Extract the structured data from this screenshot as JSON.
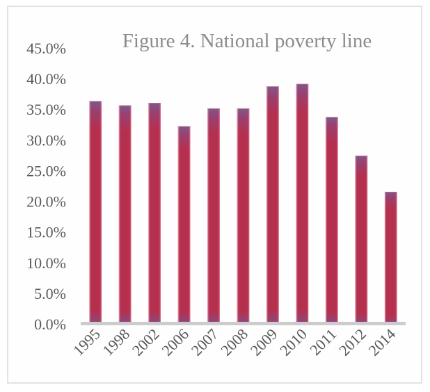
{
  "chart_data": {
    "type": "bar",
    "title": "Figure 4. National poverty line",
    "xlabel": "",
    "ylabel": "",
    "categories": [
      "1995",
      "1998",
      "2002",
      "2006",
      "2007",
      "2008",
      "2009",
      "2010",
      "2011",
      "2012",
      "2014"
    ],
    "series": [
      {
        "name": "National poverty line",
        "values": [
          36.3,
          35.6,
          36.0,
          32.2,
          35.1,
          35.1,
          38.7,
          39.1,
          33.7,
          27.4,
          21.5
        ]
      }
    ],
    "ylim": [
      0,
      45
    ],
    "y_ticks": [
      0,
      5,
      10,
      15,
      20,
      25,
      30,
      35,
      40,
      45
    ],
    "y_tick_labels": [
      "0.0%",
      "5.0%",
      "10.0%",
      "15.0%",
      "20.0%",
      "25.0%",
      "30.0%",
      "35.0%",
      "40.0%",
      "45.0%"
    ],
    "grid": false,
    "legend": "none",
    "x_label_rotation": "-45deg",
    "colors": {
      "bar_main": "#b5304f",
      "bar_edge": "#7a5a8c",
      "axis_line": "#cccccc",
      "title": "#8c8c8c",
      "tick_text": "#595959",
      "frame_border": "#e2e2e2"
    }
  }
}
